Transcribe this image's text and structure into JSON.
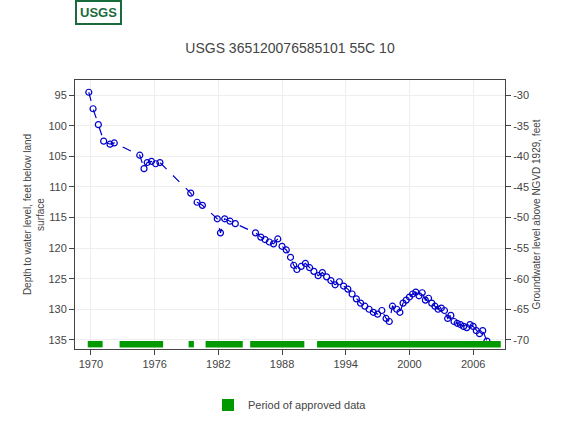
{
  "chart_data": {
    "type": "line",
    "title": "USGS 365120076585101 55C 10",
    "annotations": [
      "USGS"
    ],
    "y_label": "Depth to water level, feet below land\nsurface",
    "y2_label": "Groundwater level above NGVD 1929, feet",
    "xlim": [
      1968.5,
      2009.0
    ],
    "xticks": [
      1970,
      1976,
      1982,
      1988,
      1994,
      2000,
      2006
    ],
    "ylim": [
      136.5,
      92.5
    ],
    "yticks": [
      95,
      100,
      105,
      110,
      115,
      120,
      125,
      130,
      135
    ],
    "y2lim": [
      -71.5,
      -27.5
    ],
    "y2ticks": [
      -30,
      -35,
      -40,
      -45,
      -50,
      -55,
      -60,
      -65,
      -70
    ],
    "grid": true,
    "legend": "bottom",
    "x": [
      1969.8,
      1970.2,
      1970.7,
      1971.2,
      1971.8,
      1972.2,
      1974.6,
      1975.0,
      1975.3,
      1975.7,
      1976.1,
      1976.5,
      1979.4,
      1980.0,
      1980.5,
      1981.9,
      1982.2,
      1982.6,
      1983.1,
      1983.6,
      1985.5,
      1986.0,
      1986.4,
      1986.8,
      1987.2,
      1987.6,
      1988.0,
      1988.4,
      1988.8,
      1989.1,
      1989.4,
      1989.8,
      1990.2,
      1990.6,
      1991.0,
      1991.4,
      1991.8,
      1992.2,
      1992.6,
      1993.0,
      1993.4,
      1993.8,
      1994.2,
      1994.6,
      1995.0,
      1995.4,
      1995.8,
      1996.2,
      1996.6,
      1997.0,
      1997.4,
      1997.8,
      1998.1,
      1998.4,
      1998.8,
      1999.1,
      1999.4,
      1999.7,
      2000.0,
      2000.3,
      2000.6,
      2000.9,
      2001.2,
      2001.5,
      2001.8,
      2002.1,
      2002.4,
      2002.7,
      2003.0,
      2003.3,
      2003.6,
      2003.9,
      2004.2,
      2004.5,
      2004.8,
      2005.1,
      2005.4,
      2005.7,
      2006.0,
      2006.3,
      2006.6,
      2006.9,
      2007.3
    ],
    "series": [
      {
        "color": "#0000cc",
        "marker": "open_circle",
        "line_style": "dashed",
        "values": [
          94.5,
          97.2,
          99.8,
          102.5,
          103.0,
          102.8,
          104.8,
          107.0,
          106.0,
          105.8,
          106.2,
          106.0,
          111.0,
          112.5,
          113.0,
          115.2,
          117.5,
          115.2,
          115.6,
          116.0,
          117.5,
          118.2,
          118.6,
          119.0,
          119.3,
          118.5,
          119.7,
          120.3,
          121.5,
          122.8,
          123.5,
          123.0,
          122.5,
          123.2,
          123.8,
          124.5,
          124.0,
          124.7,
          125.3,
          126.0,
          125.5,
          126.2,
          126.7,
          127.5,
          128.3,
          129.0,
          129.5,
          130.0,
          130.5,
          130.8,
          130.2,
          131.5,
          132.0,
          129.5,
          130.0,
          130.5,
          129.0,
          128.5,
          128.0,
          127.5,
          127.2,
          127.8,
          127.3,
          128.5,
          128.2,
          129.0,
          129.5,
          130.0,
          129.8,
          130.2,
          131.5,
          131.0,
          132.0,
          132.3,
          132.5,
          132.8,
          133.0,
          132.5,
          132.8,
          133.5,
          134.0,
          133.5,
          135.2
        ]
      }
    ],
    "approved_periods": {
      "name": "Period of approved data",
      "color": "#009900",
      "segments": [
        [
          1969.7,
          1971.1
        ],
        [
          1972.7,
          1976.8
        ],
        [
          1979.2,
          1979.7
        ],
        [
          1980.8,
          1984.3
        ],
        [
          1985.0,
          1990.1
        ],
        [
          1991.3,
          2008.6
        ]
      ]
    }
  }
}
